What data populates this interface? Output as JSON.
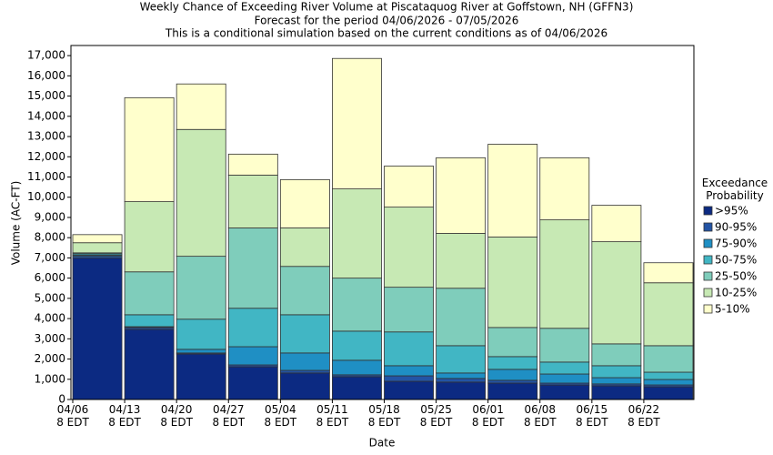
{
  "chart_data": {
    "type": "stacked_bar",
    "title": "Weekly Chance of Exceeding River Volume at Piscataquog River at Goffstown, NH (GFFN3)",
    "subtitle": "Forecast for the period 04/06/2026 - 07/05/2026",
    "subtitle2": "This is a conditional simulation based on the current conditions as of 04/06/2026",
    "x_label": "Date",
    "y_label": "Volume (AC-FT)",
    "legend_title": "Exceedance\nProbability",
    "categories": [
      "04/06\n8 EDT",
      "04/13\n8 EDT",
      "04/20\n8 EDT",
      "04/27\n8 EDT",
      "05/04\n8 EDT",
      "05/11\n8 EDT",
      "05/18\n8 EDT",
      "05/25\n8 EDT",
      "06/01\n8 EDT",
      "06/08\n8 EDT",
      "06/15\n8 EDT",
      "06/22\n8 EDT"
    ],
    "series": [
      {
        "name": ">95%",
        "color": "#0c2a82",
        "values": [
          6990,
          3470,
          2250,
          1620,
          1310,
          1130,
          900,
          860,
          810,
          720,
          680,
          630
        ]
      },
      {
        "name": "90-95%",
        "color": "#2354a5",
        "values": [
          90,
          90,
          50,
          90,
          130,
          90,
          270,
          180,
          140,
          90,
          90,
          90
        ]
      },
      {
        "name": "75-90%",
        "color": "#1f8fc4",
        "values": [
          50,
          40,
          180,
          900,
          860,
          720,
          500,
          270,
          540,
          450,
          310,
          270
        ]
      },
      {
        "name": "50-75%",
        "color": "#41b6c4",
        "values": [
          70,
          590,
          1490,
          1900,
          1890,
          1440,
          1670,
          1350,
          630,
          590,
          590,
          360
        ]
      },
      {
        "name": "25-50%",
        "color": "#7fcdbb",
        "values": [
          50,
          2120,
          3110,
          3970,
          2390,
          2620,
          2210,
          2840,
          1440,
          1670,
          1080,
          1310
        ]
      },
      {
        "name": "10-25%",
        "color": "#c7e9b4",
        "values": [
          500,
          3470,
          6270,
          2610,
          1900,
          4410,
          3960,
          2710,
          4470,
          5360,
          5050,
          3110
        ]
      },
      {
        "name": "5-10%",
        "color": "#ffffcc",
        "values": [
          400,
          5140,
          2250,
          1040,
          2390,
          6450,
          2030,
          3740,
          4590,
          3070,
          1800,
          990
        ]
      }
    ],
    "ylim": [
      0,
      17500
    ],
    "yticks": [
      0,
      {
        "value": 1000,
        "label": "1,000"
      },
      {
        "value": 2000,
        "label": "2,000"
      },
      {
        "value": 3000,
        "label": "3,000"
      },
      {
        "value": 4000,
        "label": "4,000"
      },
      {
        "value": 5000,
        "label": "5,000"
      },
      {
        "value": 6000,
        "label": "6,000"
      },
      {
        "value": 7000,
        "label": "7,000"
      },
      {
        "value": 8000,
        "label": "8,000"
      },
      {
        "value": 9000,
        "label": "9,000"
      },
      {
        "value": 10000,
        "label": "10,000"
      },
      {
        "value": 11000,
        "label": "11,000"
      },
      {
        "value": 12000,
        "label": "12,000"
      },
      {
        "value": 13000,
        "label": "13,000"
      },
      {
        "value": 14000,
        "label": "14,000"
      },
      {
        "value": 15000,
        "label": "15,000"
      },
      {
        "value": 16000,
        "label": "16,000"
      },
      {
        "value": 17000,
        "label": "17,000"
      }
    ],
    "grid": false
  }
}
